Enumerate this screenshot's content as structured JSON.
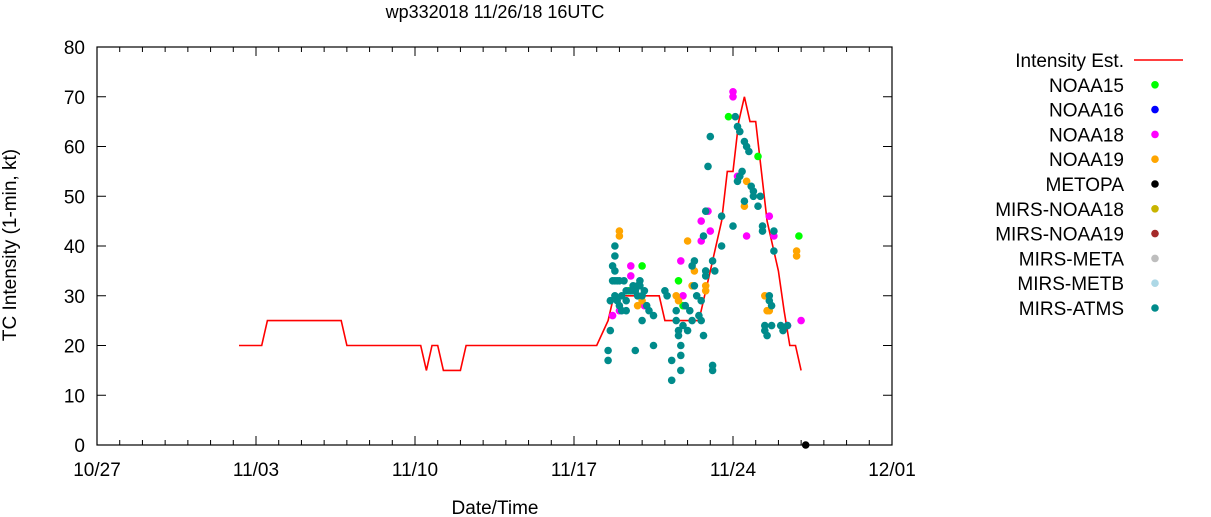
{
  "chart_data": {
    "type": "scatter",
    "title": "wp332018 11/26/18 16UTC",
    "xlabel": "Date/Time",
    "ylabel": "TC Intensity (1-min, kt)",
    "xlim": [
      0,
      35
    ],
    "ylim": [
      0,
      80
    ],
    "x_unit": "days since 10/27/18 00UTC",
    "x_ticks": [
      {
        "value": 0,
        "label": "10/27"
      },
      {
        "value": 7,
        "label": "11/03"
      },
      {
        "value": 14,
        "label": "11/10"
      },
      {
        "value": 21,
        "label": "11/17"
      },
      {
        "value": 28,
        "label": "11/24"
      },
      {
        "value": 35,
        "label": "12/01"
      }
    ],
    "y_ticks": [
      0,
      10,
      20,
      30,
      40,
      50,
      60,
      70,
      80
    ],
    "legend_position": "right",
    "series": [
      {
        "name": "Intensity Est.",
        "kind": "line",
        "color": "#ff0000",
        "points": [
          [
            6.25,
            20
          ],
          [
            7.25,
            20
          ],
          [
            7.5,
            25
          ],
          [
            10.75,
            25
          ],
          [
            11.0,
            20
          ],
          [
            14.25,
            20
          ],
          [
            14.5,
            15
          ],
          [
            14.75,
            20
          ],
          [
            15.0,
            20
          ],
          [
            15.25,
            15
          ],
          [
            16.0,
            15
          ],
          [
            16.25,
            20
          ],
          [
            22.0,
            20
          ],
          [
            22.5,
            25
          ],
          [
            22.75,
            30
          ],
          [
            24.75,
            30
          ],
          [
            25.0,
            25
          ],
          [
            26.5,
            25
          ],
          [
            27.0,
            35
          ],
          [
            27.5,
            45
          ],
          [
            27.75,
            55
          ],
          [
            28.0,
            55
          ],
          [
            28.25,
            65
          ],
          [
            28.5,
            70
          ],
          [
            28.75,
            65
          ],
          [
            29.0,
            65
          ],
          [
            29.5,
            45
          ],
          [
            30.0,
            35
          ],
          [
            30.25,
            27
          ],
          [
            30.5,
            20
          ],
          [
            30.75,
            20
          ],
          [
            31.0,
            15
          ]
        ]
      },
      {
        "name": "NOAA15",
        "kind": "points",
        "color": "#00ff00",
        "points": [
          [
            23.4,
            31
          ],
          [
            24.0,
            36
          ],
          [
            25.6,
            33
          ],
          [
            25.8,
            28
          ],
          [
            27.8,
            66
          ],
          [
            29.1,
            58
          ],
          [
            30.9,
            42
          ]
        ]
      },
      {
        "name": "NOAA16",
        "kind": "points",
        "color": "#0000ff",
        "points": []
      },
      {
        "name": "NOAA18",
        "kind": "points",
        "color": "#ff00ff",
        "points": [
          [
            22.7,
            26
          ],
          [
            23.0,
            27
          ],
          [
            23.5,
            36
          ],
          [
            23.5,
            34
          ],
          [
            24.1,
            28
          ],
          [
            25.7,
            37
          ],
          [
            25.8,
            30
          ],
          [
            26.6,
            41
          ],
          [
            26.6,
            45
          ],
          [
            26.9,
            47
          ],
          [
            27.0,
            43
          ],
          [
            28.0,
            71
          ],
          [
            28.0,
            70
          ],
          [
            28.2,
            54
          ],
          [
            28.6,
            42
          ],
          [
            29.6,
            46
          ],
          [
            29.8,
            42
          ],
          [
            30.4,
            24
          ],
          [
            31.0,
            25
          ]
        ]
      },
      {
        "name": "NOAA19",
        "kind": "points",
        "color": "#ffa500",
        "points": [
          [
            23.0,
            43
          ],
          [
            23.0,
            42
          ],
          [
            23.8,
            28
          ],
          [
            24.0,
            29
          ],
          [
            25.5,
            30
          ],
          [
            25.6,
            29
          ],
          [
            26.0,
            41
          ],
          [
            26.2,
            32
          ],
          [
            26.3,
            35
          ],
          [
            26.8,
            32
          ],
          [
            26.8,
            31
          ],
          [
            28.5,
            48
          ],
          [
            28.6,
            53
          ],
          [
            29.4,
            30
          ],
          [
            29.5,
            27
          ],
          [
            29.6,
            27
          ],
          [
            30.8,
            39
          ],
          [
            30.8,
            38
          ]
        ]
      },
      {
        "name": "METOPA",
        "kind": "points",
        "color": "#000000",
        "points": [
          [
            31.2,
            0
          ]
        ]
      },
      {
        "name": "MIRS-NOAA18",
        "kind": "points",
        "color": "#c8b400",
        "points": []
      },
      {
        "name": "MIRS-NOAA19",
        "kind": "points",
        "color": "#a52a2a",
        "points": []
      },
      {
        "name": "MIRS-META",
        "kind": "points",
        "color": "#bebebe",
        "points": []
      },
      {
        "name": "MIRS-METB",
        "kind": "points",
        "color": "#add8e6",
        "points": []
      },
      {
        "name": "MIRS-ATMS",
        "kind": "points",
        "color": "#008b8b",
        "points": [
          [
            22.5,
            17
          ],
          [
            22.5,
            19
          ],
          [
            22.6,
            23
          ],
          [
            22.6,
            29
          ],
          [
            22.7,
            36
          ],
          [
            22.7,
            33
          ],
          [
            22.8,
            40
          ],
          [
            22.8,
            38
          ],
          [
            22.8,
            35
          ],
          [
            22.8,
            33
          ],
          [
            22.8,
            30
          ],
          [
            22.9,
            29
          ],
          [
            22.9,
            33
          ],
          [
            23.0,
            33
          ],
          [
            23.0,
            28
          ],
          [
            23.1,
            27
          ],
          [
            23.1,
            30
          ],
          [
            23.2,
            33
          ],
          [
            23.3,
            31
          ],
          [
            23.3,
            29
          ],
          [
            23.3,
            27
          ],
          [
            23.5,
            31
          ],
          [
            23.6,
            32
          ],
          [
            23.6,
            31
          ],
          [
            23.7,
            19
          ],
          [
            23.7,
            31
          ],
          [
            23.8,
            32
          ],
          [
            23.8,
            30
          ],
          [
            23.9,
            33
          ],
          [
            23.9,
            32
          ],
          [
            24.0,
            25
          ],
          [
            24.0,
            30
          ],
          [
            24.1,
            31
          ],
          [
            24.2,
            28
          ],
          [
            24.3,
            27
          ],
          [
            24.5,
            20
          ],
          [
            24.5,
            26
          ],
          [
            25.0,
            31
          ],
          [
            25.1,
            30
          ],
          [
            25.3,
            17
          ],
          [
            25.3,
            13
          ],
          [
            25.5,
            27
          ],
          [
            25.5,
            25
          ],
          [
            25.6,
            23
          ],
          [
            25.6,
            22
          ],
          [
            25.7,
            20
          ],
          [
            25.7,
            18
          ],
          [
            25.7,
            15
          ],
          [
            25.8,
            24
          ],
          [
            25.9,
            28
          ],
          [
            26.0,
            23
          ],
          [
            26.1,
            27
          ],
          [
            26.2,
            25
          ],
          [
            26.2,
            36
          ],
          [
            26.3,
            37
          ],
          [
            26.3,
            32
          ],
          [
            26.4,
            30
          ],
          [
            26.5,
            26
          ],
          [
            26.6,
            29
          ],
          [
            26.6,
            25
          ],
          [
            26.7,
            22
          ],
          [
            26.7,
            42
          ],
          [
            26.8,
            47
          ],
          [
            26.8,
            35
          ],
          [
            26.8,
            34
          ],
          [
            26.9,
            56
          ],
          [
            27.0,
            62
          ],
          [
            27.1,
            16
          ],
          [
            27.1,
            15
          ],
          [
            27.1,
            37
          ],
          [
            27.2,
            35
          ],
          [
            27.5,
            40
          ],
          [
            27.5,
            46
          ],
          [
            28.0,
            44
          ],
          [
            28.1,
            66
          ],
          [
            28.2,
            64
          ],
          [
            28.3,
            63
          ],
          [
            28.2,
            53
          ],
          [
            28.3,
            54
          ],
          [
            28.4,
            55
          ],
          [
            28.5,
            61
          ],
          [
            28.5,
            49
          ],
          [
            28.6,
            60
          ],
          [
            28.7,
            59
          ],
          [
            28.8,
            52
          ],
          [
            28.9,
            50
          ],
          [
            28.9,
            51
          ],
          [
            29.1,
            48
          ],
          [
            29.2,
            50
          ],
          [
            29.3,
            44
          ],
          [
            29.3,
            43
          ],
          [
            29.4,
            24
          ],
          [
            29.4,
            23
          ],
          [
            29.5,
            22
          ],
          [
            29.6,
            30
          ],
          [
            29.6,
            29
          ],
          [
            29.7,
            28
          ],
          [
            29.7,
            24
          ],
          [
            29.8,
            43
          ],
          [
            29.8,
            39
          ],
          [
            30.1,
            24
          ],
          [
            30.2,
            23
          ],
          [
            30.4,
            24
          ]
        ]
      }
    ]
  }
}
